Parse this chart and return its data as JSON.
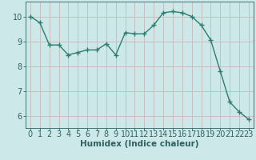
{
  "x": [
    0,
    1,
    2,
    3,
    4,
    5,
    6,
    7,
    8,
    9,
    10,
    11,
    12,
    13,
    14,
    15,
    16,
    17,
    18,
    19,
    20,
    21,
    22,
    23
  ],
  "y": [
    10.0,
    9.75,
    8.85,
    8.85,
    8.45,
    8.55,
    8.65,
    8.65,
    8.9,
    8.45,
    9.35,
    9.3,
    9.3,
    9.65,
    10.15,
    10.2,
    10.15,
    10.0,
    9.65,
    9.05,
    7.8,
    6.55,
    6.15,
    5.85
  ],
  "line_color": "#2e7d6e",
  "marker": "+",
  "marker_size": 4,
  "bg_color": "#cce8e8",
  "grid_color_v": "#c8b8b8",
  "grid_color_h": "#c8b8b8",
  "xlabel": "Humidex (Indice chaleur)",
  "ylim": [
    5.5,
    10.6
  ],
  "xlim": [
    -0.5,
    23.5
  ],
  "yticks": [
    6,
    7,
    8,
    9,
    10
  ],
  "xticks": [
    0,
    1,
    2,
    3,
    4,
    5,
    6,
    7,
    8,
    9,
    10,
    11,
    12,
    13,
    14,
    15,
    16,
    17,
    18,
    19,
    20,
    21,
    22,
    23
  ],
  "tick_color": "#2e6060",
  "axis_color": "#2e6060",
  "label_fontsize": 7.5,
  "tick_fontsize": 7,
  "linewidth": 1.0,
  "markerwidth": 1.0
}
